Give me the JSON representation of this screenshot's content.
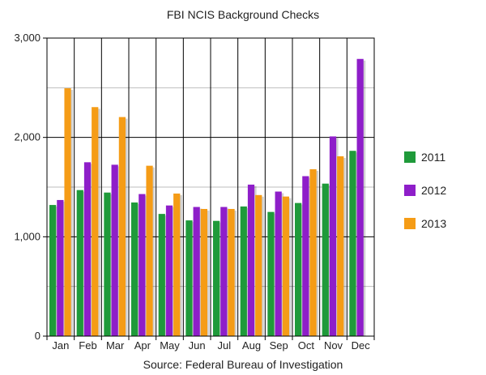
{
  "chart_data": {
    "type": "bar",
    "title": "FBI NCIS Background Checks",
    "caption": "Source: Federal Bureau of Investigation",
    "xlabel": "",
    "ylabel": "",
    "categories": [
      "Jan",
      "Feb",
      "Mar",
      "Apr",
      "May",
      "Jun",
      "Jul",
      "Aug",
      "Sep",
      "Oct",
      "Nov",
      "Dec"
    ],
    "series": [
      {
        "name": "2011",
        "color": "#1f9a3a",
        "values": [
          1320,
          1470,
          1445,
          1345,
          1230,
          1165,
          1160,
          1305,
          1250,
          1340,
          1535,
          1865
        ]
      },
      {
        "name": "2012",
        "color": "#8e1ec9",
        "values": [
          1370,
          1750,
          1725,
          1430,
          1315,
          1300,
          1300,
          1525,
          1455,
          1610,
          2010,
          2790
        ]
      },
      {
        "name": "2013",
        "color": "#f59c16",
        "values": [
          2495,
          2305,
          2205,
          1715,
          1435,
          1280,
          1280,
          1420,
          1405,
          1680,
          1810,
          null
        ]
      }
    ],
    "yaxis": {
      "min": 0,
      "max": 3000,
      "major_ticks": [
        0,
        1000,
        2000,
        3000
      ],
      "tick_labels": [
        "0",
        "1,000",
        "2,000",
        "3,000"
      ],
      "minor_gridlines": [
        500,
        1500,
        2500
      ]
    },
    "grid": true,
    "legend_position": "right"
  }
}
